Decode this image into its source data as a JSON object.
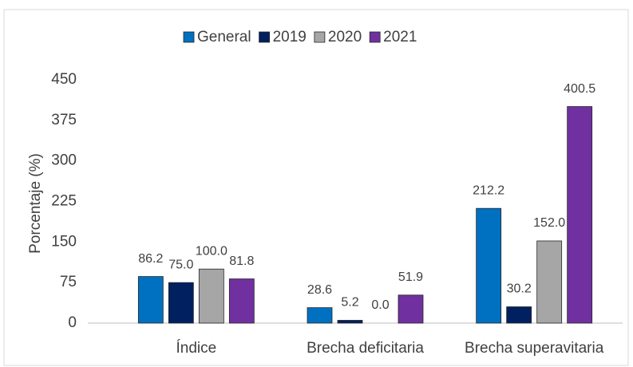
{
  "chart_data": {
    "type": "bar",
    "y_label": "Porcentaje (%)",
    "categories": [
      "Índice",
      "Brecha deficitaria",
      "Brecha superavitaria"
    ],
    "series": [
      {
        "name": "General",
        "color": "#0070c0",
        "values": [
          86.2,
          28.6,
          212.2
        ],
        "value_labels": [
          "86.2",
          "28.6",
          "212.2"
        ]
      },
      {
        "name": "2019",
        "color": "#002060",
        "values": [
          75.0,
          5.2,
          30.2
        ],
        "value_labels": [
          "75.0",
          "5.2",
          "30.2"
        ]
      },
      {
        "name": "2020",
        "color": "#a6a6a6",
        "values": [
          100.0,
          0.0,
          152.0
        ],
        "value_labels": [
          "100.0",
          "0.0",
          "152.0"
        ]
      },
      {
        "name": "2021",
        "color": "#7030a0",
        "values": [
          81.8,
          51.9,
          400.5
        ],
        "value_labels": [
          "81.8",
          "51.9",
          "400.5"
        ]
      }
    ],
    "ylim": [
      0,
      450
    ],
    "yticks": [
      0,
      75,
      150,
      225,
      300,
      375,
      450
    ],
    "grid": false,
    "legend": "top"
  }
}
